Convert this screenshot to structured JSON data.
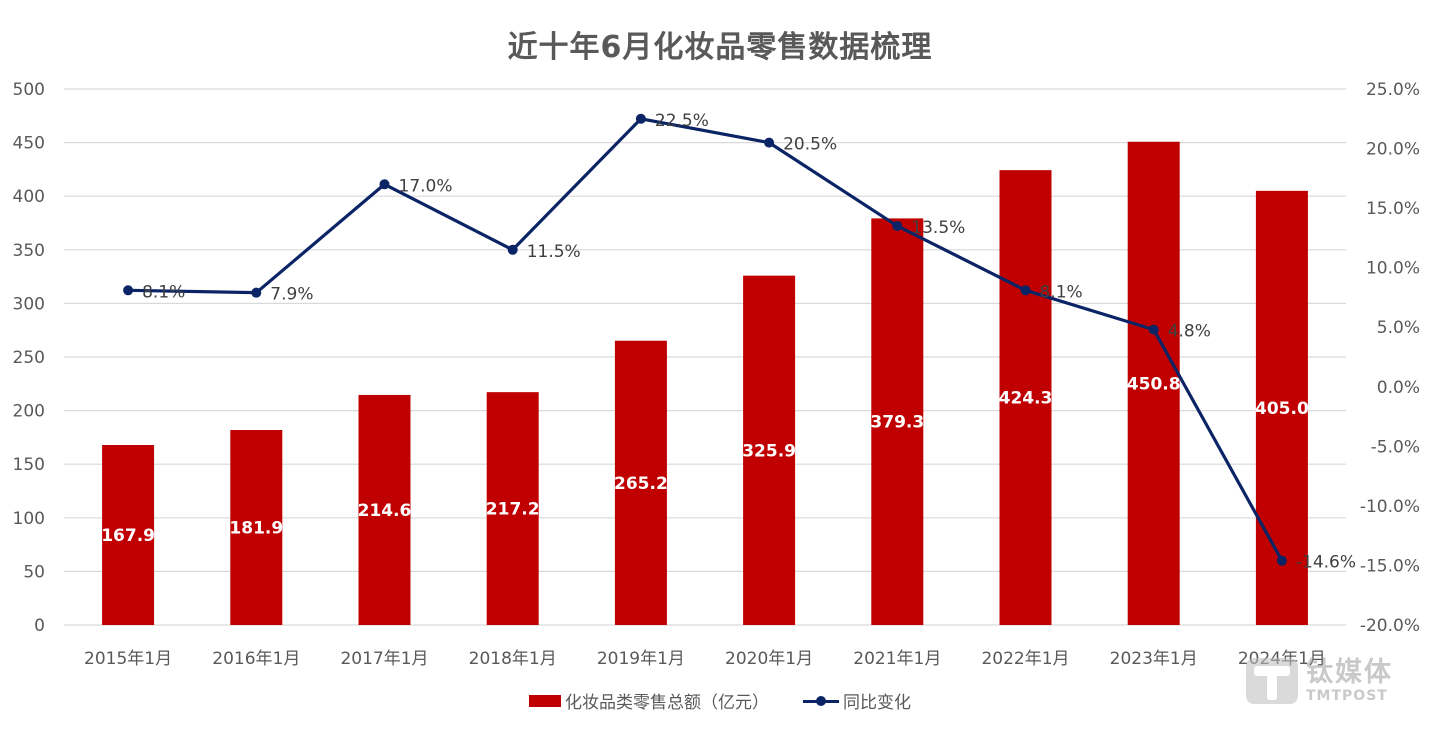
{
  "chart_data": {
    "type": "bar+line",
    "title": "近十年6月化妆品零售数据梳理",
    "categories": [
      "2015年1月",
      "2016年1月",
      "2017年1月",
      "2018年1月",
      "2019年1月",
      "2020年1月",
      "2021年1月",
      "2022年1月",
      "2023年1月",
      "2024年1月"
    ],
    "series": [
      {
        "name": "化妆品类零售总额（亿元）",
        "type": "bar",
        "axis": "left",
        "color": "#c00000",
        "values": [
          167.9,
          181.9,
          214.6,
          217.2,
          265.2,
          325.9,
          379.3,
          424.3,
          450.8,
          405.0
        ],
        "labels": [
          "167.9",
          "181.9",
          "214.6",
          "217.2",
          "265.2",
          "325.9",
          "379.3",
          "424.3",
          "450.8",
          "405.0"
        ]
      },
      {
        "name": "同比变化",
        "type": "line",
        "axis": "right",
        "color": "#0b2466",
        "values": [
          8.1,
          7.9,
          17.0,
          11.5,
          22.5,
          20.5,
          13.5,
          8.1,
          4.8,
          -14.6
        ],
        "labels": [
          "8.1%",
          "7.9%",
          "17.0%",
          "11.5%",
          "22.5%",
          "20.5%",
          "13.5%",
          "8.1%",
          "4.8%",
          "-14.6%"
        ]
      }
    ],
    "xlabel": "",
    "ylabel_left": "",
    "ylabel_right": "",
    "ylim_left": [
      0,
      500
    ],
    "ylim_right": [
      -20,
      25
    ],
    "yticks_left": [
      "0",
      "50",
      "100",
      "150",
      "200",
      "250",
      "300",
      "350",
      "400",
      "450",
      "500"
    ],
    "yticks_right": [
      "-20.0%",
      "-15.0%",
      "-10.0%",
      "-5.0%",
      "0.0%",
      "5.0%",
      "10.0%",
      "15.0%",
      "20.0%",
      "25.0%"
    ],
    "grid": true,
    "legend_position": "bottom"
  },
  "legend": {
    "bar_label": "化妆品类零售总额（亿元）",
    "line_label": "同比变化"
  },
  "watermark": {
    "cn": "钛媒体",
    "en": "TMTPOST"
  }
}
